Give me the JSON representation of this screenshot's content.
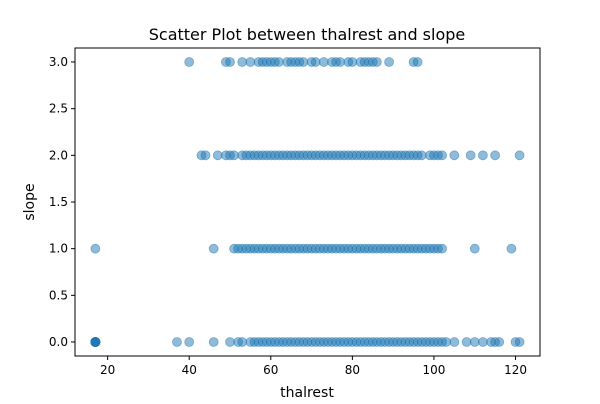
{
  "chart_data": {
    "type": "scatter",
    "title": "Scatter Plot between thalrest and slope",
    "xlabel": "thalrest",
    "ylabel": "slope",
    "xlim": [
      12,
      126
    ],
    "ylim": [
      -0.15,
      3.15
    ],
    "xticks": [
      20,
      40,
      60,
      80,
      100,
      120
    ],
    "yticks": [
      0.0,
      0.5,
      1.0,
      1.5,
      2.0,
      2.5,
      3.0
    ],
    "xtick_labels": [
      "20",
      "40",
      "60",
      "80",
      "100",
      "120"
    ],
    "ytick_labels": [
      "0.0",
      "0.5",
      "1.0",
      "1.5",
      "2.0",
      "2.5",
      "3.0"
    ],
    "grid": false,
    "legend": false,
    "marker_color": "#1f77b4",
    "marker_alpha": 0.5,
    "series": [
      {
        "x": [
          17,
          17,
          17,
          17,
          17,
          17,
          17,
          17,
          17,
          17,
          37,
          40,
          46,
          50,
          52,
          53,
          55,
          56,
          57,
          58,
          59,
          60,
          61,
          62,
          63,
          64,
          65,
          66,
          67,
          68,
          69,
          70,
          71,
          72,
          73,
          74,
          75,
          76,
          77,
          78,
          79,
          80,
          81,
          82,
          83,
          84,
          85,
          86,
          87,
          88,
          89,
          90,
          91,
          92,
          93,
          94,
          95,
          96,
          97,
          98,
          99,
          100,
          101,
          102,
          103,
          105,
          108,
          110,
          112,
          114,
          115,
          116,
          120,
          121,
          17,
          46,
          51,
          52,
          53,
          54,
          55,
          56,
          57,
          58,
          59,
          60,
          61,
          62,
          63,
          64,
          65,
          66,
          67,
          68,
          69,
          70,
          71,
          72,
          73,
          74,
          75,
          76,
          77,
          78,
          79,
          80,
          81,
          82,
          83,
          84,
          85,
          86,
          87,
          88,
          89,
          90,
          91,
          92,
          93,
          94,
          95,
          96,
          97,
          98,
          99,
          100,
          101,
          102,
          110,
          119,
          43,
          44,
          47,
          49,
          50,
          51,
          53,
          54,
          55,
          56,
          57,
          58,
          59,
          60,
          61,
          62,
          63,
          64,
          65,
          66,
          67,
          68,
          69,
          70,
          71,
          72,
          73,
          74,
          75,
          76,
          77,
          78,
          79,
          80,
          81,
          82,
          83,
          84,
          85,
          86,
          87,
          88,
          89,
          90,
          91,
          92,
          93,
          94,
          95,
          96,
          97,
          99,
          100,
          101,
          102,
          105,
          109,
          112,
          115,
          121,
          40,
          49,
          50,
          53,
          55,
          57,
          58,
          59,
          60,
          61,
          62,
          64,
          65,
          66,
          67,
          68,
          70,
          71,
          73,
          75,
          76,
          77,
          79,
          80,
          82,
          83,
          84,
          85,
          86,
          89,
          95,
          96
        ],
        "y": [
          0,
          0,
          0,
          0,
          0,
          0,
          0,
          0,
          0,
          0,
          0,
          0,
          0,
          0,
          0,
          0,
          0,
          0,
          0,
          0,
          0,
          0,
          0,
          0,
          0,
          0,
          0,
          0,
          0,
          0,
          0,
          0,
          0,
          0,
          0,
          0,
          0,
          0,
          0,
          0,
          0,
          0,
          0,
          0,
          0,
          0,
          0,
          0,
          0,
          0,
          0,
          0,
          0,
          0,
          0,
          0,
          0,
          0,
          0,
          0,
          0,
          0,
          0,
          0,
          0,
          0,
          0,
          0,
          0,
          0,
          0,
          0,
          0,
          0,
          1,
          1,
          1,
          1,
          1,
          1,
          1,
          1,
          1,
          1,
          1,
          1,
          1,
          1,
          1,
          1,
          1,
          1,
          1,
          1,
          1,
          1,
          1,
          1,
          1,
          1,
          1,
          1,
          1,
          1,
          1,
          1,
          1,
          1,
          1,
          1,
          1,
          1,
          1,
          1,
          1,
          1,
          1,
          1,
          1,
          1,
          1,
          1,
          1,
          1,
          1,
          1,
          1,
          1,
          1,
          1,
          2,
          2,
          2,
          2,
          2,
          2,
          2,
          2,
          2,
          2,
          2,
          2,
          2,
          2,
          2,
          2,
          2,
          2,
          2,
          2,
          2,
          2,
          2,
          2,
          2,
          2,
          2,
          2,
          2,
          2,
          2,
          2,
          2,
          2,
          2,
          2,
          2,
          2,
          2,
          2,
          2,
          2,
          2,
          2,
          2,
          2,
          2,
          2,
          2,
          2,
          2,
          2,
          2,
          2,
          2,
          2,
          2,
          2,
          2,
          2,
          3,
          3,
          3,
          3,
          3,
          3,
          3,
          3,
          3,
          3,
          3,
          3,
          3,
          3,
          3,
          3,
          3,
          3,
          3,
          3,
          3,
          3,
          3,
          3,
          3,
          3,
          3,
          3,
          3,
          3,
          3,
          3
        ]
      }
    ]
  }
}
